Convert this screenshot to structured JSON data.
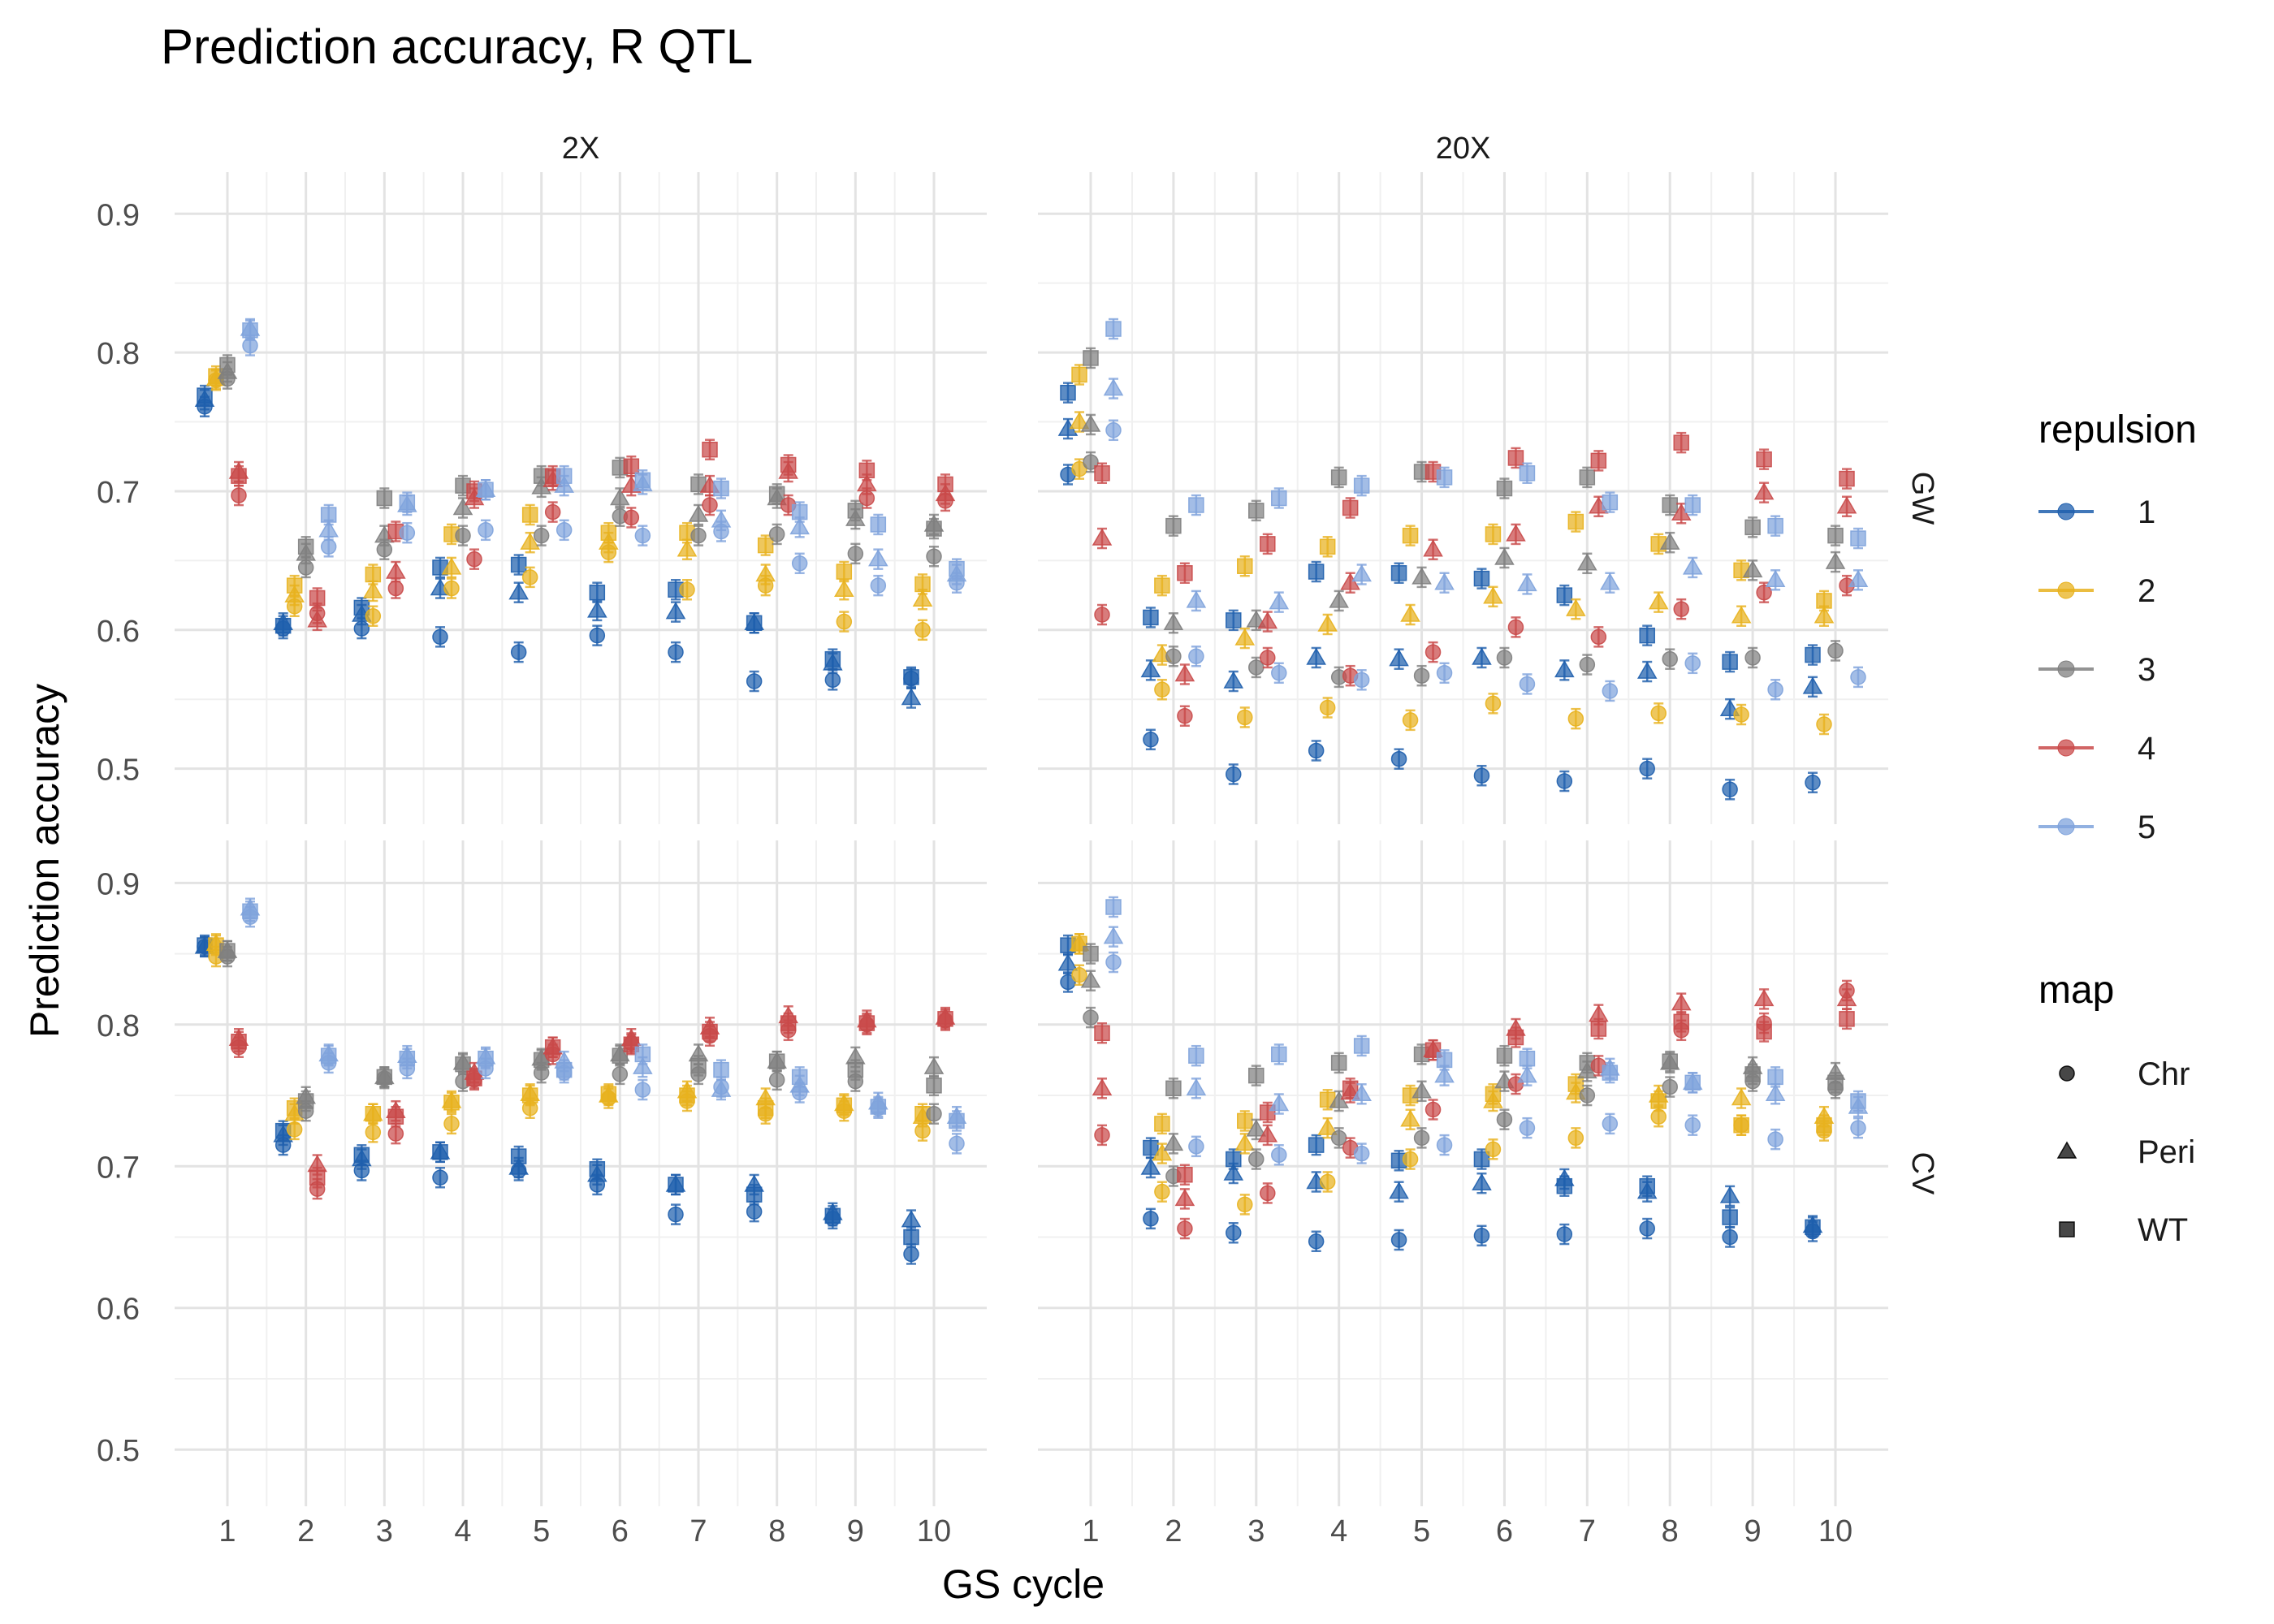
{
  "chart_data": {
    "type": "scatter",
    "title": "Prediction accuracy, R QTL",
    "xlabel": "GS cycle",
    "ylabel": "Prediction accuracy",
    "x_ticks": [
      "1",
      "2",
      "3",
      "4",
      "5",
      "6",
      "7",
      "8",
      "9",
      "10"
    ],
    "ylim": [
      0.46,
      0.93
    ],
    "y_ticks": [
      "0.5",
      "0.6",
      "0.7",
      "0.8",
      "0.9"
    ],
    "grid": true,
    "col_facets": [
      "2X",
      "20X"
    ],
    "row_facets": [
      "GW",
      "CV"
    ],
    "legend_placement": "right",
    "legend": {
      "color": {
        "title": "repulsion",
        "items": [
          {
            "label": "1",
            "color": "#1f5fad"
          },
          {
            "label": "2",
            "color": "#e8b21e"
          },
          {
            "label": "3",
            "color": "#808080"
          },
          {
            "label": "4",
            "color": "#c94a4a"
          },
          {
            "label": "5",
            "color": "#7fa3dc"
          }
        ]
      },
      "shape": {
        "title": "map",
        "items": [
          {
            "label": "Chr",
            "shape": "circle"
          },
          {
            "label": "Peri",
            "shape": "triangle"
          },
          {
            "label": "WT",
            "shape": "square"
          }
        ]
      }
    },
    "series_order": [
      "repulsion",
      "map"
    ],
    "maps": [
      "Chr",
      "Peri",
      "WT"
    ],
    "panels": [
      {
        "col": "2X",
        "row": "GW",
        "values": {
          "1": {
            "Chr": [
              0.761,
              0.601,
              0.601,
              0.595,
              0.584,
              0.596,
              0.584,
              0.563,
              0.564,
              0.565
            ],
            "Peri": [
              0.766,
              0.605,
              0.611,
              0.63,
              0.627,
              0.614,
              0.613,
              0.605,
              0.576,
              0.551
            ],
            "WT": [
              0.769,
              0.603,
              0.616,
              0.645,
              0.647,
              0.627,
              0.629,
              0.605,
              0.579,
              0.566
            ]
          },
          "2": {
            "Chr": [
              0.78,
              0.617,
              0.61,
              0.63,
              0.638,
              0.656,
              0.629,
              0.632,
              0.606,
              0.6
            ],
            "Peri": [
              0.781,
              0.625,
              0.628,
              0.645,
              0.663,
              0.663,
              0.658,
              0.64,
              0.629,
              0.622
            ],
            "WT": [
              0.783,
              0.632,
              0.64,
              0.669,
              0.683,
              0.67,
              0.67,
              0.661,
              0.642,
              0.633
            ]
          },
          "3": {
            "Chr": [
              0.781,
              0.645,
              0.658,
              0.668,
              0.668,
              0.682,
              0.668,
              0.669,
              0.655,
              0.653
            ],
            "Peri": [
              0.786,
              0.655,
              0.668,
              0.688,
              0.703,
              0.695,
              0.683,
              0.695,
              0.68,
              0.676
            ],
            "WT": [
              0.791,
              0.66,
              0.695,
              0.704,
              0.711,
              0.717,
              0.705,
              0.698,
              0.686,
              0.673
            ]
          },
          "4": {
            "Chr": [
              0.697,
              0.612,
              0.63,
              0.651,
              0.685,
              0.681,
              0.69,
              0.69,
              0.695,
              0.693
            ],
            "Peri": [
              0.714,
              0.607,
              0.642,
              0.695,
              0.708,
              0.704,
              0.704,
              0.714,
              0.705,
              0.698
            ],
            "WT": [
              0.711,
              0.623,
              0.671,
              0.7,
              0.711,
              0.718,
              0.73,
              0.719,
              0.715,
              0.705
            ]
          },
          "5": {
            "Chr": [
              0.805,
              0.66,
              0.67,
              0.672,
              0.672,
              0.668,
              0.671,
              0.648,
              0.632,
              0.634
            ],
            "Peri": [
              0.817,
              0.672,
              0.69,
              0.701,
              0.704,
              0.705,
              0.679,
              0.674,
              0.651,
              0.64
            ],
            "WT": [
              0.816,
              0.683,
              0.692,
              0.701,
              0.711,
              0.708,
              0.702,
              0.685,
              0.676,
              0.644
            ]
          }
        }
      },
      {
        "col": "20X",
        "row": "GW",
        "values": {
          "1": {
            "Chr": [
              0.712,
              0.521,
              0.496,
              0.513,
              0.507,
              0.495,
              0.491,
              0.5,
              0.485,
              0.49
            ],
            "Peri": [
              0.745,
              0.571,
              0.563,
              0.58,
              0.579,
              0.58,
              0.571,
              0.57,
              0.543,
              0.559
            ],
            "WT": [
              0.771,
              0.609,
              0.607,
              0.642,
              0.641,
              0.637,
              0.625,
              0.596,
              0.577,
              0.582
            ]
          },
          "2": {
            "Chr": [
              0.716,
              0.557,
              0.537,
              0.544,
              0.535,
              0.547,
              0.536,
              0.54,
              0.539,
              0.532
            ],
            "Peri": [
              0.75,
              0.582,
              0.594,
              0.604,
              0.611,
              0.624,
              0.615,
              0.62,
              0.61,
              0.61
            ],
            "WT": [
              0.784,
              0.632,
              0.646,
              0.66,
              0.668,
              0.669,
              0.678,
              0.662,
              0.643,
              0.621
            ]
          },
          "3": {
            "Chr": [
              0.721,
              0.581,
              0.573,
              0.566,
              0.567,
              0.58,
              0.575,
              0.579,
              0.58,
              0.585
            ],
            "Peri": [
              0.748,
              0.605,
              0.607,
              0.621,
              0.638,
              0.652,
              0.648,
              0.663,
              0.643,
              0.649
            ],
            "WT": [
              0.796,
              0.675,
              0.686,
              0.71,
              0.714,
              0.702,
              0.71,
              0.69,
              0.674,
              0.668
            ]
          },
          "4": {
            "Chr": [
              0.611,
              0.538,
              0.58,
              0.567,
              0.584,
              0.602,
              0.595,
              0.615,
              0.627,
              0.632
            ],
            "Peri": [
              0.666,
              0.568,
              0.606,
              0.634,
              0.658,
              0.669,
              0.689,
              0.684,
              0.699,
              0.689
            ],
            "WT": [
              0.713,
              0.641,
              0.662,
              0.688,
              0.714,
              0.724,
              0.722,
              0.735,
              0.723,
              0.709
            ]
          },
          "5": {
            "Chr": [
              0.744,
              0.581,
              0.569,
              0.564,
              0.569,
              0.561,
              0.556,
              0.576,
              0.557,
              0.566
            ],
            "Peri": [
              0.774,
              0.621,
              0.62,
              0.64,
              0.634,
              0.633,
              0.634,
              0.645,
              0.636,
              0.636
            ],
            "WT": [
              0.817,
              0.69,
              0.695,
              0.704,
              0.71,
              0.713,
              0.692,
              0.69,
              0.675,
              0.666
            ]
          }
        }
      },
      {
        "col": "2X",
        "row": "CV",
        "values": {
          "1": {
            "Chr": [
              0.855,
              0.715,
              0.697,
              0.692,
              0.697,
              0.687,
              0.666,
              0.668,
              0.663,
              0.638
            ],
            "Peri": [
              0.855,
              0.722,
              0.705,
              0.71,
              0.699,
              0.694,
              0.687,
              0.687,
              0.667,
              0.662
            ],
            "WT": [
              0.856,
              0.725,
              0.708,
              0.71,
              0.707,
              0.698,
              0.687,
              0.68,
              0.665,
              0.65
            ]
          },
          "2": {
            "Chr": [
              0.848,
              0.726,
              0.724,
              0.73,
              0.741,
              0.748,
              0.746,
              0.737,
              0.739,
              0.725
            ],
            "Peri": [
              0.857,
              0.737,
              0.737,
              0.746,
              0.751,
              0.75,
              0.753,
              0.748,
              0.744,
              0.735
            ],
            "WT": [
              0.856,
              0.741,
              0.737,
              0.745,
              0.75,
              0.751,
              0.75,
              0.741,
              0.743,
              0.737
            ]
          },
          "3": {
            "Chr": [
              0.848,
              0.739,
              0.762,
              0.76,
              0.766,
              0.765,
              0.765,
              0.761,
              0.76,
              0.737
            ],
            "Peri": [
              0.852,
              0.749,
              0.763,
              0.773,
              0.776,
              0.779,
              0.779,
              0.774,
              0.777,
              0.77
            ],
            "WT": [
              0.852,
              0.746,
              0.763,
              0.772,
              0.775,
              0.778,
              0.771,
              0.774,
              0.768,
              0.757
            ]
          },
          "4": {
            "Chr": [
              0.784,
              0.684,
              0.723,
              0.761,
              0.779,
              0.787,
              0.792,
              0.796,
              0.8,
              0.803
            ],
            "Peri": [
              0.79,
              0.701,
              0.739,
              0.766,
              0.784,
              0.79,
              0.798,
              0.806,
              0.803,
              0.805
            ],
            "WT": [
              0.788,
              0.692,
              0.735,
              0.762,
              0.784,
              0.786,
              0.795,
              0.801,
              0.801,
              0.804
            ]
          },
          "5": {
            "Chr": [
              0.876,
              0.773,
              0.769,
              0.769,
              0.766,
              0.754,
              0.756,
              0.752,
              0.741,
              0.716
            ],
            "Peri": [
              0.882,
              0.779,
              0.778,
              0.777,
              0.774,
              0.77,
              0.754,
              0.757,
              0.745,
              0.735
            ],
            "WT": [
              0.88,
              0.778,
              0.776,
              0.776,
              0.768,
              0.779,
              0.768,
              0.763,
              0.742,
              0.732
            ]
          }
        }
      },
      {
        "col": "20X",
        "row": "CV",
        "values": {
          "1": {
            "Chr": [
              0.83,
              0.663,
              0.653,
              0.647,
              0.648,
              0.651,
              0.652,
              0.656,
              0.65,
              0.654
            ],
            "Peri": [
              0.843,
              0.699,
              0.695,
              0.689,
              0.682,
              0.688,
              0.691,
              0.682,
              0.679,
              0.658
            ],
            "WT": [
              0.856,
              0.713,
              0.705,
              0.715,
              0.704,
              0.705,
              0.686,
              0.686,
              0.664,
              0.657
            ]
          },
          "2": {
            "Chr": [
              0.835,
              0.682,
              0.673,
              0.689,
              0.705,
              0.712,
              0.72,
              0.735,
              0.729,
              0.725
            ],
            "Peri": [
              0.857,
              0.709,
              0.716,
              0.727,
              0.733,
              0.746,
              0.752,
              0.75,
              0.748,
              0.735
            ],
            "WT": [
              0.857,
              0.73,
              0.732,
              0.747,
              0.75,
              0.751,
              0.758,
              0.746,
              0.729,
              0.729
            ]
          },
          "3": {
            "Chr": [
              0.805,
              0.693,
              0.705,
              0.72,
              0.72,
              0.733,
              0.75,
              0.756,
              0.76,
              0.755
            ],
            "Peri": [
              0.831,
              0.716,
              0.726,
              0.746,
              0.753,
              0.76,
              0.767,
              0.773,
              0.77,
              0.766
            ],
            "WT": [
              0.85,
              0.755,
              0.764,
              0.773,
              0.779,
              0.778,
              0.773,
              0.774,
              0.765,
              0.759
            ]
          },
          "4": {
            "Chr": [
              0.722,
              0.656,
              0.681,
              0.713,
              0.74,
              0.758,
              0.771,
              0.796,
              0.801,
              0.824
            ],
            "Peri": [
              0.755,
              0.677,
              0.722,
              0.752,
              0.782,
              0.797,
              0.807,
              0.815,
              0.818,
              0.818
            ],
            "WT": [
              0.794,
              0.694,
              0.738,
              0.755,
              0.782,
              0.791,
              0.797,
              0.802,
              0.795,
              0.804
            ]
          },
          "5": {
            "Chr": [
              0.844,
              0.714,
              0.708,
              0.709,
              0.715,
              0.727,
              0.73,
              0.729,
              0.719,
              0.727
            ],
            "Peri": [
              0.862,
              0.755,
              0.744,
              0.751,
              0.764,
              0.764,
              0.769,
              0.759,
              0.751,
              0.742
            ],
            "WT": [
              0.883,
              0.778,
              0.779,
              0.785,
              0.775,
              0.776,
              0.766,
              0.759,
              0.763,
              0.746
            ]
          }
        }
      }
    ]
  }
}
